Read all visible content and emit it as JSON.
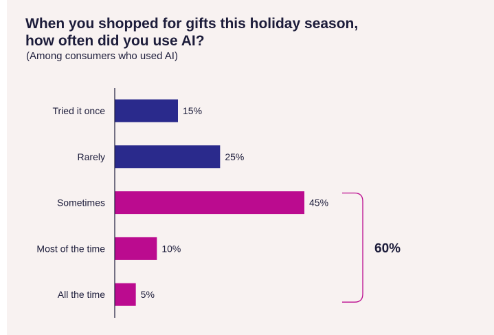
{
  "title_lines": [
    "When you shopped for gifts this holiday season,",
    "how often did you use AI?"
  ],
  "subtitle": "(Among consumers who used AI)",
  "colors": {
    "background": "#f8f2f1",
    "navy": "#2a2a8c",
    "magenta": "#bb0b8f",
    "text": "#1c1c3a"
  },
  "chart_data": {
    "type": "bar",
    "orientation": "horizontal",
    "title": "When you shopped for gifts this holiday season, how often did you use AI?",
    "subtitle": "(Among consumers who used AI)",
    "categories": [
      "Tried it once",
      "Rarely",
      "Sometimes",
      "Most of the time",
      "All the time"
    ],
    "values": [
      15,
      25,
      45,
      10,
      5
    ],
    "value_labels": [
      "15%",
      "25%",
      "45%",
      "10%",
      "5%"
    ],
    "bar_colors": [
      "#2a2a8c",
      "#2a2a8c",
      "#bb0b8f",
      "#bb0b8f",
      "#bb0b8f"
    ],
    "xlim": [
      0,
      45
    ],
    "grid": false,
    "annotations": [
      {
        "type": "bracket",
        "covers": [
          "Sometimes",
          "Most of the time",
          "All the time"
        ],
        "label": "60%"
      }
    ]
  }
}
